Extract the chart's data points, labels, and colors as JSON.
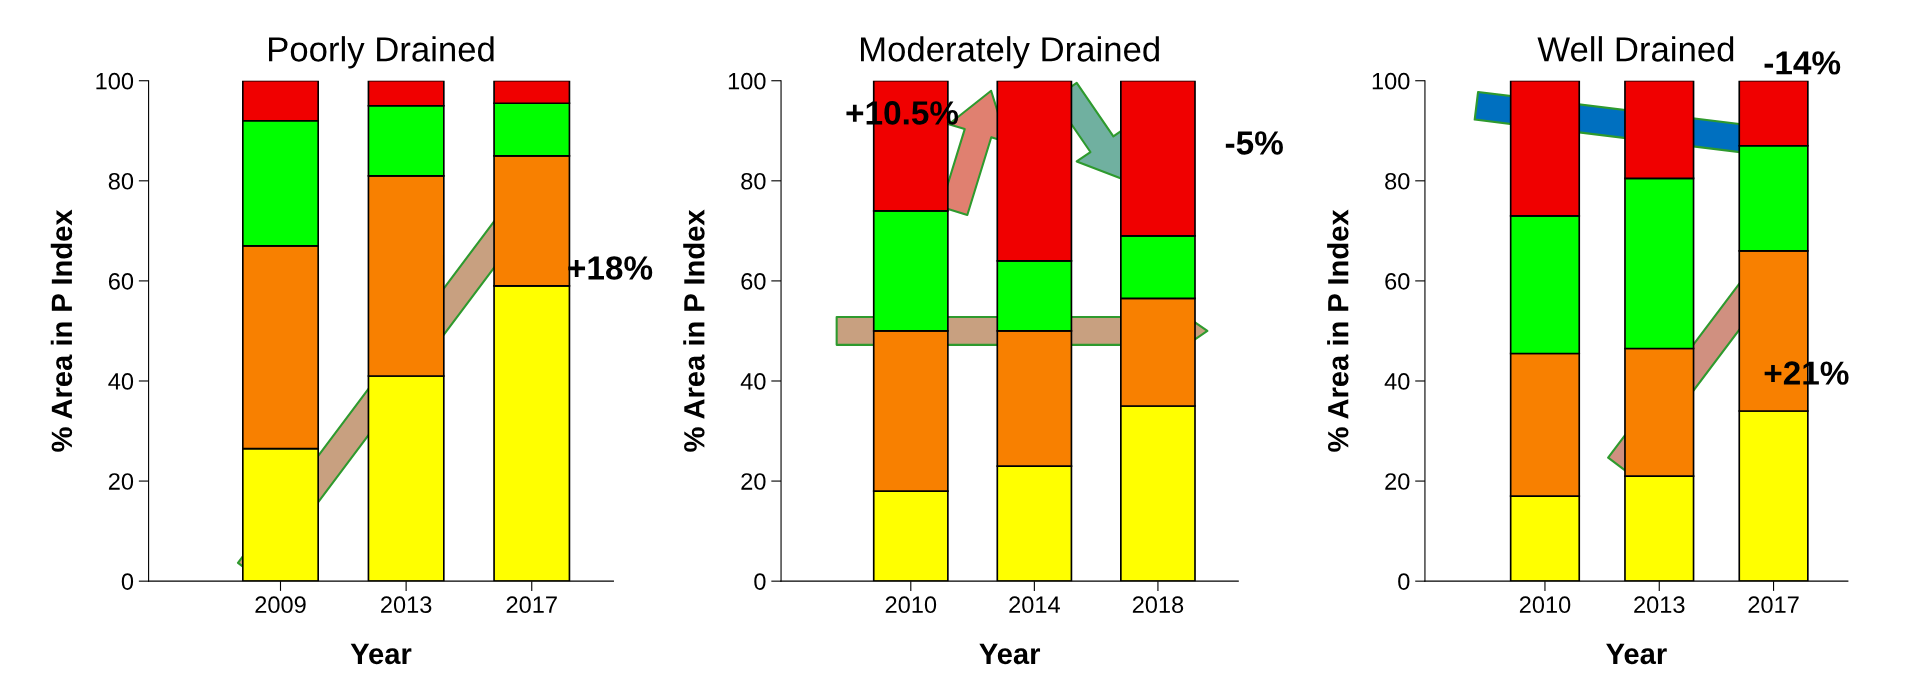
{
  "chart_data": [
    {
      "type": "bar",
      "stacked": true,
      "title": "Poorly Drained",
      "xlabel": "Year",
      "ylabel": "% Area in P Index",
      "categories": [
        "2009",
        "2013",
        "2017"
      ],
      "ylim": [
        0,
        100
      ],
      "yticks": [
        0,
        20,
        40,
        60,
        80,
        100
      ],
      "annotations": [
        "+18%"
      ],
      "series": [
        {
          "color": "#ffff00",
          "values": [
            26.5,
            41,
            59
          ]
        },
        {
          "color": "#f88000",
          "values": [
            40.5,
            40,
            26
          ]
        },
        {
          "color": "#00ff00",
          "values": [
            25,
            14,
            10.5
          ]
        },
        {
          "color": "#f00000",
          "values": [
            8,
            5,
            4.5
          ]
        }
      ]
    },
    {
      "type": "bar",
      "stacked": true,
      "title": "Moderately Drained",
      "xlabel": "Year",
      "ylabel": "% Area in P Index",
      "categories": [
        "2010",
        "2014",
        "2018"
      ],
      "ylim": [
        0,
        100
      ],
      "yticks": [
        0,
        20,
        40,
        60,
        80,
        100
      ],
      "annotations": [
        "+10.5%",
        "-5%"
      ],
      "series": [
        {
          "color": "#ffff00",
          "values": [
            18,
            23,
            35
          ]
        },
        {
          "color": "#f88000",
          "values": [
            32,
            27,
            21.5
          ]
        },
        {
          "color": "#00ff00",
          "values": [
            24,
            14,
            12.5
          ]
        },
        {
          "color": "#f00000",
          "values": [
            26,
            36,
            31
          ]
        }
      ]
    },
    {
      "type": "bar",
      "stacked": true,
      "title": "Well Drained",
      "xlabel": "Year",
      "ylabel": "% Area in P Index",
      "categories": [
        "2010",
        "2013",
        "2017"
      ],
      "ylim": [
        0,
        100
      ],
      "yticks": [
        0,
        20,
        40,
        60,
        80,
        100
      ],
      "annotations": [
        "-14%",
        "+21%"
      ],
      "series": [
        {
          "color": "#ffff00",
          "values": [
            17,
            21,
            34
          ]
        },
        {
          "color": "#f88000",
          "values": [
            28.5,
            25.5,
            32
          ]
        },
        {
          "color": "#00ff00",
          "values": [
            27.5,
            34,
            21
          ]
        },
        {
          "color": "#f00000",
          "values": [
            27,
            19.5,
            13
          ]
        }
      ]
    }
  ]
}
